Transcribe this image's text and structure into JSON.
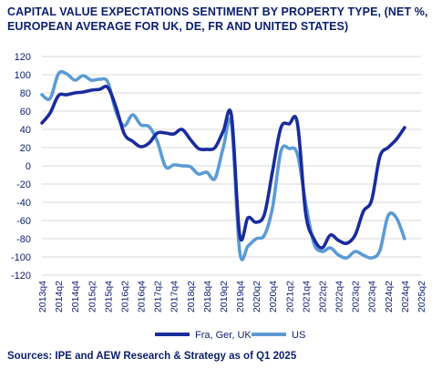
{
  "chart_data": {
    "type": "line",
    "title": "CAPITAL VALUE EXPECTATIONS SENTIMENT BY PROPERTY TYPE, (NET %, EUROPEAN AVERAGE FOR UK, DE, FR AND UNITED STATES)",
    "source": "Sources: IPE and AEW Research & Strategy as of Q1 2025",
    "ylim": [
      -120,
      120
    ],
    "yticks": [
      120,
      100,
      80,
      60,
      40,
      20,
      0,
      -20,
      -40,
      -60,
      -80,
      -100,
      -120
    ],
    "tick_labels": [
      "2013q4",
      "2014q2",
      "2014q4",
      "2015q2",
      "2015q4",
      "2016q2",
      "2016q4",
      "2017q2",
      "2017q4",
      "2018q2",
      "2018q4",
      "2019q2",
      "2019q4",
      "2020q2",
      "2020q4",
      "2021q2",
      "2021q4",
      "2022q2",
      "2022q4",
      "2023q2",
      "2023q4",
      "2024q2",
      "2024q4",
      "2025q2"
    ],
    "grid": true,
    "legend_position": "bottom",
    "series": [
      {
        "name": "Fra, Ger, UK",
        "color": "#1a2b9c",
        "points": [
          [
            0,
            47
          ],
          [
            0.5,
            58
          ],
          [
            1,
            77
          ],
          [
            1.5,
            78
          ],
          [
            2,
            80
          ],
          [
            2.5,
            81
          ],
          [
            3,
            83
          ],
          [
            3.5,
            84
          ],
          [
            4,
            86
          ],
          [
            4.5,
            64
          ],
          [
            5,
            35
          ],
          [
            5.5,
            27
          ],
          [
            6,
            21
          ],
          [
            6.5,
            25
          ],
          [
            7,
            36
          ],
          [
            7.5,
            36
          ],
          [
            8,
            35
          ],
          [
            8.5,
            40
          ],
          [
            9,
            29
          ],
          [
            9.5,
            19
          ],
          [
            10,
            18
          ],
          [
            10.5,
            20
          ],
          [
            11,
            38
          ],
          [
            11.5,
            55
          ],
          [
            12,
            -76
          ],
          [
            12.5,
            -57
          ],
          [
            13,
            -62
          ],
          [
            13.5,
            -53
          ],
          [
            14,
            -5
          ],
          [
            14.5,
            42
          ],
          [
            15,
            46
          ],
          [
            15.5,
            47
          ],
          [
            16,
            -52
          ],
          [
            16.5,
            -80
          ],
          [
            17,
            -90
          ],
          [
            17.5,
            -76
          ],
          [
            18,
            -82
          ],
          [
            18.5,
            -85
          ],
          [
            19,
            -76
          ],
          [
            19.5,
            -50
          ],
          [
            20,
            -38
          ],
          [
            20.5,
            10
          ],
          [
            21,
            20
          ],
          [
            21.5,
            29
          ],
          [
            22,
            42
          ]
        ]
      },
      {
        "name": "US",
        "color": "#5b9bd5",
        "points": [
          [
            0,
            78
          ],
          [
            0.5,
            74
          ],
          [
            1,
            101
          ],
          [
            1.5,
            101
          ],
          [
            2,
            94
          ],
          [
            2.5,
            99
          ],
          [
            3,
            94
          ],
          [
            3.5,
            95
          ],
          [
            4,
            92
          ],
          [
            4.5,
            59
          ],
          [
            5,
            44
          ],
          [
            5.5,
            56
          ],
          [
            6,
            45
          ],
          [
            6.5,
            43
          ],
          [
            7,
            27
          ],
          [
            7.5,
            -1
          ],
          [
            8,
            1
          ],
          [
            8.5,
            0
          ],
          [
            9,
            -1
          ],
          [
            9.5,
            -9
          ],
          [
            10,
            -7
          ],
          [
            10.5,
            -14
          ],
          [
            11,
            20
          ],
          [
            11.5,
            46
          ],
          [
            12,
            -94
          ],
          [
            12.5,
            -88
          ],
          [
            13,
            -80
          ],
          [
            13.5,
            -76
          ],
          [
            14,
            -45
          ],
          [
            14.5,
            16
          ],
          [
            15,
            19
          ],
          [
            15.5,
            13
          ],
          [
            16,
            -41
          ],
          [
            16.5,
            -85
          ],
          [
            17,
            -94
          ],
          [
            17.5,
            -90
          ],
          [
            18,
            -98
          ],
          [
            18.5,
            -101
          ],
          [
            19,
            -94
          ],
          [
            19.5,
            -98
          ],
          [
            20,
            -101
          ],
          [
            20.5,
            -93
          ],
          [
            21,
            -55
          ],
          [
            21.5,
            -57
          ],
          [
            22,
            -80
          ]
        ]
      }
    ]
  }
}
